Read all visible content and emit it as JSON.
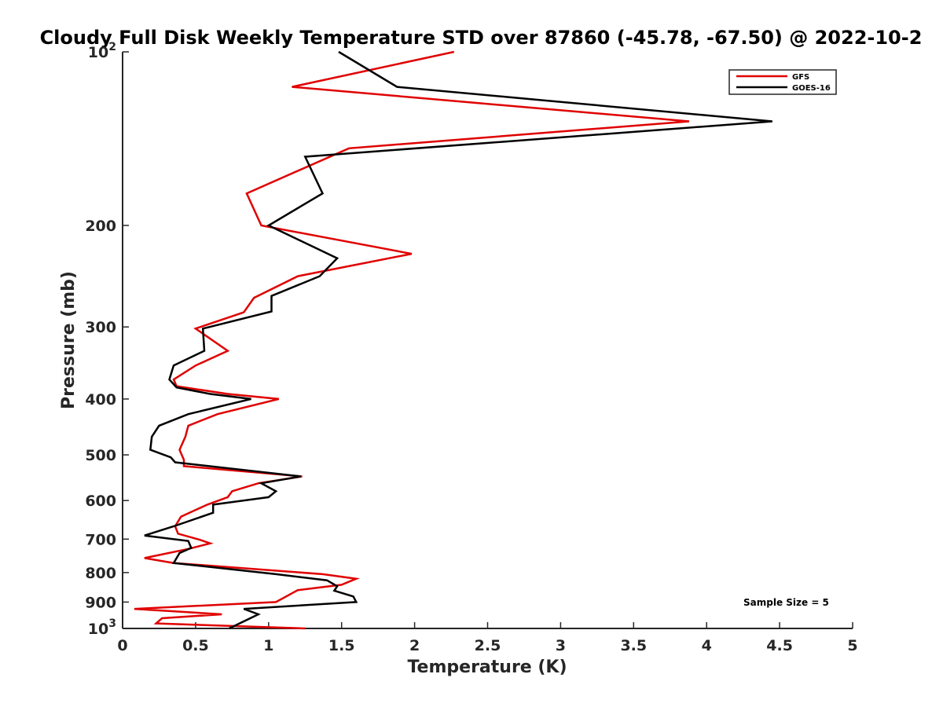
{
  "chart_data": {
    "type": "line",
    "title": "Cloudy Full Disk Weekly Temperature STD over 87860 (-45.78, -67.50) @ 2022-10-2",
    "xlabel": "Temperature (K)",
    "ylabel": "Pressure (mb)",
    "xlim": [
      0,
      5
    ],
    "ylim": [
      100,
      1000
    ],
    "yscale": "log",
    "y_reversed": true,
    "grid": false,
    "legend_position": "top-right",
    "x_ticks": [
      0,
      0.5,
      1,
      1.5,
      2,
      2.5,
      3,
      3.5,
      4,
      4.5,
      5
    ],
    "x_tick_labels": [
      "0",
      "0.5",
      "1",
      "1.5",
      "2",
      "2.5",
      "3",
      "3.5",
      "4",
      "4.5",
      "5"
    ],
    "y_ticks": [
      100,
      200,
      300,
      400,
      500,
      600,
      700,
      800,
      900,
      1000
    ],
    "y_tick_labels": [
      {
        "base": "10",
        "exp": "2"
      },
      {
        "base": "200",
        "exp": ""
      },
      {
        "base": "300",
        "exp": ""
      },
      {
        "base": "400",
        "exp": ""
      },
      {
        "base": "500",
        "exp": ""
      },
      {
        "base": "600",
        "exp": ""
      },
      {
        "base": "700",
        "exp": ""
      },
      {
        "base": "800",
        "exp": ""
      },
      {
        "base": "900",
        "exp": ""
      },
      {
        "base": "10",
        "exp": "3"
      }
    ],
    "series": [
      {
        "name": "GFS",
        "color": "#e00000",
        "points": [
          [
            2.27,
            100
          ],
          [
            1.16,
            115
          ],
          [
            3.88,
            132
          ],
          [
            1.55,
            147
          ],
          [
            0.85,
            176
          ],
          [
            0.95,
            200
          ],
          [
            1.98,
            224
          ],
          [
            1.2,
            245
          ],
          [
            0.9,
            267
          ],
          [
            0.83,
            283
          ],
          [
            0.5,
            302
          ],
          [
            0.72,
            330
          ],
          [
            0.5,
            350
          ],
          [
            0.35,
            370
          ],
          [
            0.37,
            380
          ],
          [
            0.72,
            392
          ],
          [
            1.07,
            400
          ],
          [
            0.65,
            425
          ],
          [
            0.45,
            445
          ],
          [
            0.43,
            465
          ],
          [
            0.39,
            490
          ],
          [
            0.42,
            510
          ],
          [
            0.42,
            523
          ],
          [
            1.23,
            545
          ],
          [
            0.93,
            560
          ],
          [
            0.75,
            578
          ],
          [
            0.72,
            592
          ],
          [
            0.58,
            610
          ],
          [
            0.4,
            640
          ],
          [
            0.36,
            665
          ],
          [
            0.38,
            685
          ],
          [
            0.53,
            702
          ],
          [
            0.6,
            712
          ],
          [
            0.45,
            728
          ],
          [
            0.15,
            755
          ],
          [
            0.35,
            770
          ],
          [
            1.37,
            805
          ],
          [
            1.6,
            820
          ],
          [
            1.5,
            840
          ],
          [
            1.2,
            858
          ],
          [
            1.05,
            900
          ],
          [
            0.08,
            925
          ],
          [
            0.68,
            945
          ],
          [
            0.27,
            960
          ],
          [
            0.23,
            980
          ],
          [
            1.25,
            1000
          ]
        ]
      },
      {
        "name": "GOES-16",
        "color": "#000000",
        "points": [
          [
            1.48,
            100
          ],
          [
            1.88,
            115
          ],
          [
            4.45,
            132
          ],
          [
            1.25,
            152
          ],
          [
            1.37,
            176
          ],
          [
            1.0,
            200
          ],
          [
            1.47,
            228
          ],
          [
            1.35,
            245
          ],
          [
            1.02,
            265
          ],
          [
            1.02,
            282
          ],
          [
            0.55,
            302
          ],
          [
            0.56,
            330
          ],
          [
            0.35,
            350
          ],
          [
            0.32,
            370
          ],
          [
            0.37,
            382
          ],
          [
            0.6,
            392
          ],
          [
            0.88,
            400
          ],
          [
            0.45,
            425
          ],
          [
            0.25,
            445
          ],
          [
            0.2,
            465
          ],
          [
            0.19,
            490
          ],
          [
            0.33,
            505
          ],
          [
            0.36,
            515
          ],
          [
            1.22,
            545
          ],
          [
            0.95,
            560
          ],
          [
            1.05,
            578
          ],
          [
            1.0,
            592
          ],
          [
            0.62,
            610
          ],
          [
            0.62,
            630
          ],
          [
            0.35,
            665
          ],
          [
            0.15,
            690
          ],
          [
            0.45,
            705
          ],
          [
            0.47,
            725
          ],
          [
            0.39,
            740
          ],
          [
            0.35,
            770
          ],
          [
            1.05,
            805
          ],
          [
            1.4,
            825
          ],
          [
            1.47,
            845
          ],
          [
            1.45,
            860
          ],
          [
            1.58,
            880
          ],
          [
            1.6,
            900
          ],
          [
            0.83,
            925
          ],
          [
            0.93,
            945
          ],
          [
            0.73,
            1000
          ]
        ]
      }
    ],
    "annotations": [
      {
        "text": "Sample Size = 5"
      }
    ]
  }
}
